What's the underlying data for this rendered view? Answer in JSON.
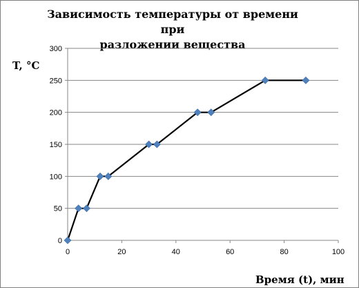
{
  "chart_data": {
    "type": "line",
    "title": "Зависимость температуры от времени при разложении вещества",
    "title_lines": [
      "Зависимость температуры от времени при",
      "разложении вещества"
    ],
    "xlabel": "Время (t), мин",
    "ylabel": "T, °C",
    "xlim": [
      0,
      100
    ],
    "ylim": [
      0,
      300
    ],
    "xticks": [
      0,
      20,
      40,
      60,
      80,
      100
    ],
    "yticks": [
      0,
      50,
      100,
      150,
      200,
      250,
      300
    ],
    "x_tick_labels": [
      "0",
      "20",
      "40",
      "60",
      "80",
      "100"
    ],
    "y_tick_labels": [
      "0",
      "50",
      "100",
      "150",
      "200",
      "250",
      "300"
    ],
    "grid": "horizontal",
    "legend": "none",
    "series": [
      {
        "x": [
          0,
          4,
          7,
          12,
          15,
          30,
          33,
          48,
          53,
          73,
          88
        ],
        "y": [
          0,
          50,
          50,
          100,
          100,
          150,
          150,
          200,
          200,
          250,
          250
        ]
      }
    ],
    "colors": {
      "line": "#000000",
      "marker": "#4f81bd",
      "grid": "#868686",
      "axis": "#868686"
    }
  }
}
